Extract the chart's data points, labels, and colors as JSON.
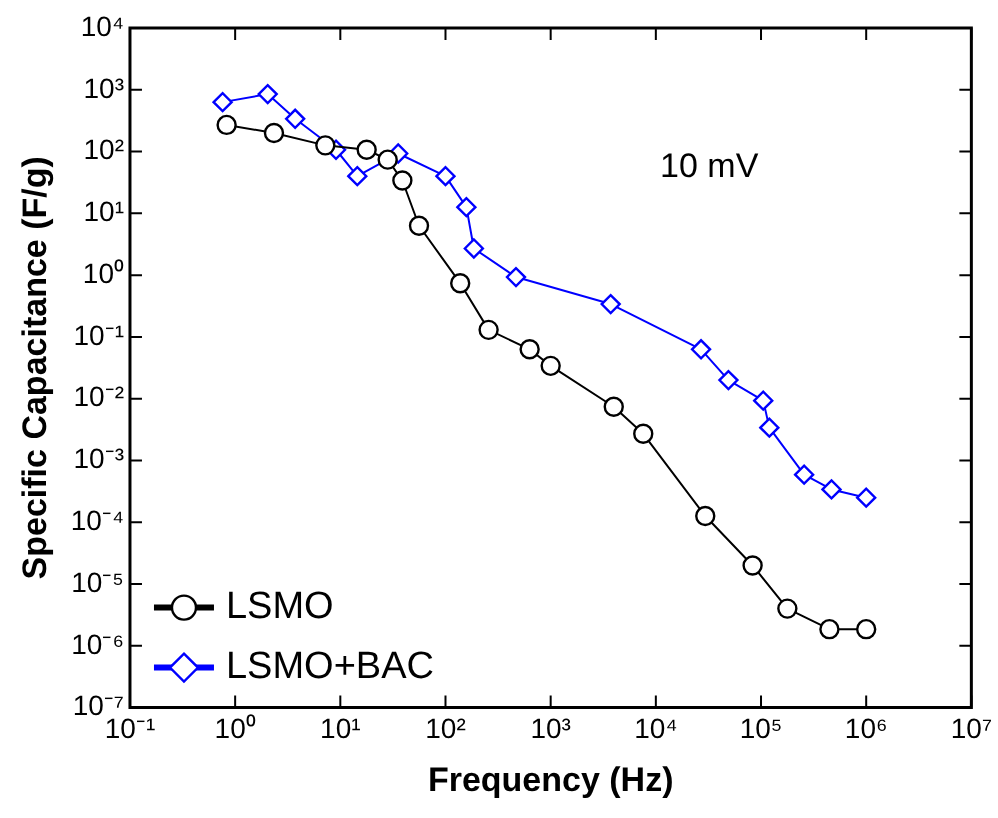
{
  "chart_data": {
    "type": "line",
    "xlabel": "Frequency (Hz)",
    "ylabel": "Specific Capacitance (F/g)",
    "log": "xy",
    "grid": false,
    "legend": "bottom left",
    "line_style": "solid",
    "annotations": [
      "10 mV"
    ],
    "xlim": [
      0.1,
      10000000
    ],
    "xticks": [
      {
        "value": 0.1,
        "label": "10⁻¹"
      },
      {
        "value": 1,
        "label": "10⁰"
      },
      {
        "value": 10,
        "label": "10¹"
      },
      {
        "value": 100,
        "label": "10²"
      },
      {
        "value": 1000,
        "label": "10³"
      },
      {
        "value": 10000,
        "label": "10⁴"
      },
      {
        "value": 100000,
        "label": "10⁵"
      },
      {
        "value": 1000000,
        "label": "10⁶"
      },
      {
        "value": 10000000,
        "label": "10⁷"
      }
    ],
    "ylim": [
      1e-07,
      10000
    ],
    "yticks": [
      {
        "value": 1e-07,
        "label": "10⁻⁷"
      },
      {
        "value": 1e-06,
        "label": "10⁻⁶"
      },
      {
        "value": 1e-05,
        "label": "10⁻⁵"
      },
      {
        "value": 0.0001,
        "label": "10⁻⁴"
      },
      {
        "value": 0.001,
        "label": "10⁻³"
      },
      {
        "value": 0.01,
        "label": "10⁻²"
      },
      {
        "value": 0.1,
        "label": "10⁻¹"
      },
      {
        "value": 1,
        "label": "10⁰"
      },
      {
        "value": 10,
        "label": "10¹"
      },
      {
        "value": 100,
        "label": "10²"
      },
      {
        "value": 1000,
        "label": "10³"
      },
      {
        "value": 10000,
        "label": "10⁴"
      }
    ],
    "series": [
      {
        "name": "LSMO",
        "color": "#000000",
        "marker": "circle",
        "x": [
          0.83,
          2.34,
          7.2,
          17.8,
          28.2,
          38.9,
          56,
          138,
          257,
          631,
          1000,
          3980,
          7590,
          29500,
          83200,
          178000,
          447000,
          1000000
        ],
        "values": [
          270,
          200,
          126,
          107,
          74,
          34,
          6.3,
          0.74,
          0.13,
          0.063,
          0.034,
          0.0074,
          0.0027,
          0.000126,
          2e-05,
          4e-06,
          1.86e-06,
          1.86e-06
        ]
      },
      {
        "name": "LSMO+BAC",
        "color": "#0000ff",
        "marker": "diamond",
        "x": [
          0.76,
          2.04,
          3.72,
          9.1,
          14.5,
          35.5,
          100,
          158,
          186,
          468,
          3720,
          26900,
          49000,
          105000,
          120000,
          257000,
          468000,
          1000000
        ],
        "values": [
          631,
          851,
          339,
          107,
          40,
          93,
          40,
          12.6,
          2.7,
          0.93,
          0.34,
          0.063,
          0.02,
          0.0093,
          0.0034,
          0.00059,
          0.00034,
          0.00025
        ]
      }
    ]
  }
}
